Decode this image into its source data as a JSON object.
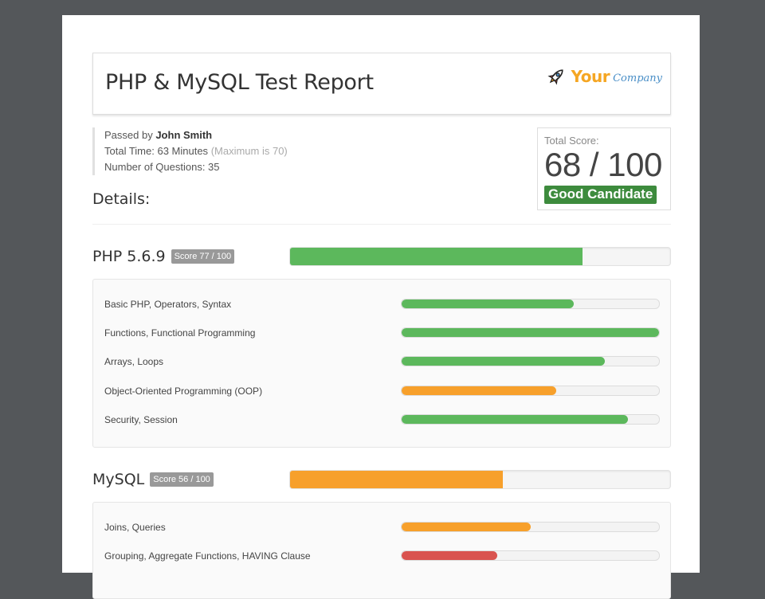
{
  "header": {
    "title": "PHP & MySQL Test Report",
    "logo": {
      "icon": "rocket-icon",
      "text_main": "Your",
      "text_sub": "Company"
    }
  },
  "candidate": {
    "passed_by_prefix": "Passed by",
    "name": "John Smith",
    "time_label": "Total Time: 63 Minutes",
    "time_max": "(Maximum is 70)",
    "questions_label": "Number of Questions: 35"
  },
  "details_heading": "Details:",
  "total_score": {
    "label": "Total Score:",
    "value": "68 / 100",
    "verdict": "Good Candidate"
  },
  "colors": {
    "green": "#5cb85c",
    "orange": "#f7a02b",
    "red": "#d9534f",
    "verdict": "#3d8b3d"
  },
  "sections": [
    {
      "title": "PHP 5.6.9",
      "badge": "Score 77 / 100",
      "progress": 0.77,
      "color": "green",
      "topics": [
        {
          "label": "Basic PHP, Operators, Syntax",
          "progress": 0.67,
          "color": "green"
        },
        {
          "label": "Functions, Functional Programming",
          "progress": 1.0,
          "color": "green"
        },
        {
          "label": "Arrays, Loops",
          "progress": 0.79,
          "color": "green"
        },
        {
          "label": "Object-Oriented Programming (OOP)",
          "progress": 0.6,
          "color": "orange"
        },
        {
          "label": "Security, Session",
          "progress": 0.88,
          "color": "green"
        }
      ]
    },
    {
      "title": "MySQL",
      "badge": "Score 56 / 100",
      "progress": 0.56,
      "color": "orange",
      "topics": [
        {
          "label": "Joins, Queries",
          "progress": 0.5,
          "color": "orange"
        },
        {
          "label": "Grouping, Aggregate Functions, HAVING Clause",
          "progress": 0.37,
          "color": "red"
        }
      ]
    }
  ]
}
